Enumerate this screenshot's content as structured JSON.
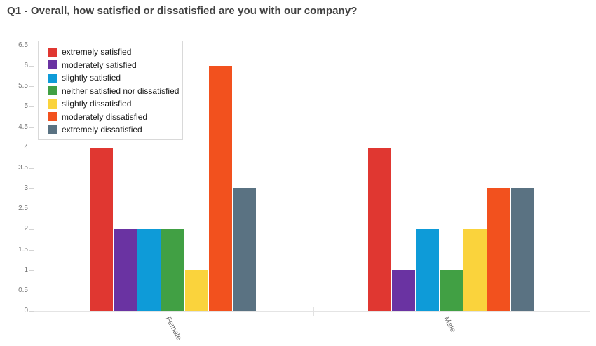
{
  "title": "Q1 - Overall, how satisfied or dissatisfied are you with our company?",
  "chart_data": {
    "type": "bar",
    "title": "Q1 - Overall, how satisfied or dissatisfied are you with our company?",
    "categories": [
      "Female",
      "Male"
    ],
    "series": [
      {
        "name": "extremely satisfied",
        "color": "#E03731",
        "values": [
          4,
          4
        ]
      },
      {
        "name": "moderately satisfied",
        "color": "#6A33A2",
        "values": [
          2,
          1
        ]
      },
      {
        "name": "slightly satisfied",
        "color": "#0E9BD8",
        "values": [
          2,
          2
        ]
      },
      {
        "name": "neither satisfied nor dissatisfied",
        "color": "#41A044",
        "values": [
          2,
          1
        ]
      },
      {
        "name": "slightly dissatisfied",
        "color": "#FAD33C",
        "values": [
          1,
          2
        ]
      },
      {
        "name": "moderately dissatisfied",
        "color": "#F2511E",
        "values": [
          6,
          3
        ]
      },
      {
        "name": "extremely dissatisfied",
        "color": "#5A7282",
        "values": [
          3,
          3
        ]
      }
    ],
    "xlabel": "",
    "ylabel": "",
    "ylim": [
      0,
      6.5
    ],
    "ytick_labels": [
      "0",
      "0.5",
      "1",
      "1.5",
      "2",
      "2.5",
      "3",
      "3.5",
      "4",
      "4.5",
      "5",
      "5.5",
      "6",
      "6.5"
    ],
    "grid": false,
    "legend_position": "top-left",
    "plot_background": "#ffffff"
  }
}
